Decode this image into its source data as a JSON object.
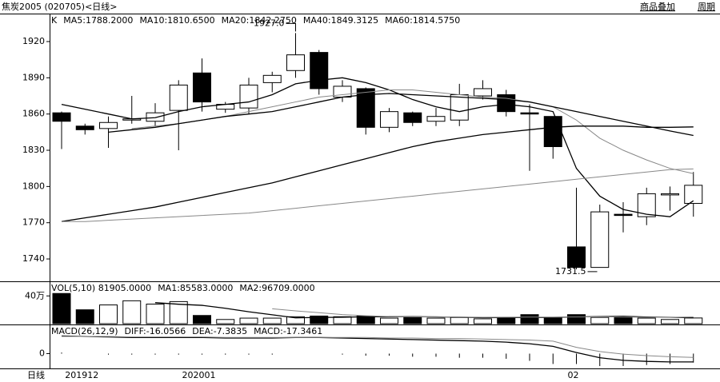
{
  "header": {
    "title": "焦炭2005 (020705)<日线>",
    "buttons": [
      "商品叠加",
      "周期"
    ]
  },
  "chart_data": [
    {
      "type": "candlestick",
      "legend_title": "K",
      "ylim": [
        1721.5,
        1942.5
      ],
      "yticks": [
        1740,
        1770,
        1800,
        1830,
        1860,
        1890,
        1920
      ],
      "grid": false,
      "up_color": "#ffffff",
      "down_color": "#000000",
      "open": [
        1861,
        1850,
        1848,
        1855,
        1854,
        1863,
        1894,
        1864,
        1865,
        1886,
        1896,
        1911,
        1874,
        1881,
        1849,
        1861,
        1854,
        1855,
        1875,
        1876,
        1861,
        1858,
        1750,
        1733,
        1777,
        1775,
        1793,
        1786
      ],
      "close": [
        1854,
        1847,
        1853,
        1856,
        1861,
        1884,
        1870,
        1868,
        1884,
        1892,
        1909,
        1881,
        1883,
        1849,
        1862,
        1853,
        1858,
        1876,
        1881,
        1862,
        1860,
        1833,
        1733,
        1779,
        1776,
        1794,
        1794,
        1801
      ],
      "high": [
        1862,
        1852,
        1858,
        1875,
        1869,
        1888,
        1906,
        1870,
        1890,
        1895,
        1927,
        1913,
        1888,
        1882,
        1865,
        1862,
        1865,
        1885,
        1888,
        1880,
        1868,
        1858,
        1799,
        1785,
        1787,
        1799,
        1800,
        1812
      ],
      "low": [
        1831,
        1843,
        1832,
        1852,
        1850,
        1830,
        1862,
        1861,
        1860,
        1878,
        1890,
        1876,
        1870,
        1843,
        1845,
        1850,
        1850,
        1850,
        1872,
        1858,
        1813,
        1823,
        1731.5,
        1733,
        1762,
        1768,
        1780,
        1775
      ],
      "annotations": [
        "1927.0",
        "1731.5"
      ],
      "series": [
        {
          "name": "MA5:1788.2000",
          "color": "#000000",
          "values": [
            1868,
            1864,
            1860,
            1856,
            1857,
            1862,
            1866,
            1868,
            1870,
            1876,
            1885,
            1888,
            1890,
            1886,
            1880,
            1872,
            1866,
            1862,
            1866,
            1868,
            1866,
            1862,
            1815,
            1792,
            1781,
            1777,
            1775,
            1788.2
          ]
        },
        {
          "name": "MA10:1810.6500",
          "color": "#888888",
          "values": [
            null,
            null,
            null,
            1848,
            1850,
            1852,
            1855,
            1858,
            1862,
            1866,
            1870,
            1874,
            1876,
            1878,
            1880,
            1880,
            1878,
            1876,
            1874,
            1873,
            1870,
            1866,
            1855,
            1840,
            1830,
            1822,
            1815,
            1810.65
          ]
        },
        {
          "name": "MA20:1842.2750",
          "color": "#000000",
          "values": [
            null,
            null,
            1845,
            1847,
            1849,
            1852,
            1855,
            1858,
            1860,
            1862,
            1866,
            1870,
            1874,
            1876,
            1877,
            1876,
            1875,
            1874,
            1873,
            1872,
            1870,
            1866,
            1862,
            1858,
            1854,
            1850,
            1846,
            1842.275
          ]
        },
        {
          "name": "MA40:1849.3125",
          "color": "#000000",
          "values": [
            1771,
            1774,
            1777,
            1780,
            1783,
            1787,
            1791,
            1795,
            1799,
            1803,
            1808,
            1813,
            1818,
            1823,
            1828,
            1833,
            1837,
            1840,
            1843,
            1845,
            1847,
            1849,
            1850,
            1850,
            1850,
            1849,
            1849,
            1849.3125
          ]
        },
        {
          "name": "MA60:1814.5750",
          "color": "#888888",
          "values": [
            1771,
            1771,
            1772,
            1773,
            1774,
            1775,
            1776,
            1777,
            1778,
            1780,
            1782,
            1784,
            1786,
            1788,
            1790,
            1792,
            1794,
            1796,
            1798,
            1800,
            1802,
            1804,
            1806,
            1808,
            1810,
            1812,
            1814,
            1814.575
          ]
        }
      ]
    },
    {
      "type": "volume",
      "title": "VOL(5,10) 81905.0000",
      "ylim": [
        0,
        576000
      ],
      "yticks": [
        {
          "value": 400000,
          "label": "40万"
        }
      ],
      "values": [
        435000,
        200000,
        270000,
        330000,
        282000,
        318000,
        118000,
        60000,
        80000,
        80000,
        100000,
        110000,
        100000,
        110000,
        80000,
        100000,
        80000,
        90000,
        70000,
        80000,
        130000,
        80000,
        130000,
        90000,
        100000,
        80000,
        60000,
        81905
      ],
      "series": [
        {
          "name": "MA1:85583.0000",
          "color": "#000000",
          "values": [
            null,
            null,
            null,
            null,
            303000,
            280000,
            264000,
            222000,
            171000,
            128000,
            84000,
            90000,
            92000,
            100000,
            100000,
            100000,
            98000,
            94000,
            86000,
            88000,
            90000,
            90000,
            98000,
            102000,
            106000,
            96000,
            92000,
            85583
          ]
        },
        {
          "name": "MA2:96709.0000",
          "color": "#888888",
          "values": [
            null,
            null,
            null,
            null,
            null,
            null,
            null,
            null,
            null,
            215000,
            184000,
            159000,
            131000,
            114000,
            102000,
            98000,
            99000,
            97000,
            92000,
            94000,
            95000,
            95000,
            96000,
            98000,
            97000,
            92000,
            92000,
            96709
          ]
        }
      ]
    },
    {
      "type": "macd",
      "title": "MACD(26,12,9)",
      "ylim": [
        -27,
        53
      ],
      "yticks": [
        0
      ],
      "xlabel": "日线",
      "categories": [
        null,
        "201912",
        null,
        null,
        null,
        null,
        "202001",
        null,
        null,
        null,
        null,
        null,
        null,
        null,
        null,
        null,
        null,
        null,
        null,
        null,
        null,
        null,
        "02",
        null,
        null,
        null,
        null,
        null
      ],
      "series": [
        {
          "name": "DIFF:-16.0566",
          "color": "#000000",
          "values": [
            34,
            33,
            32,
            31,
            31,
            31,
            31,
            30,
            30,
            30,
            31,
            31,
            30,
            29,
            28,
            27,
            26,
            25,
            24,
            22,
            19,
            14,
            2,
            -8,
            -13,
            -15,
            -16,
            -16.0566
          ]
        },
        {
          "name": "DEA:-7.3835",
          "color": "#888888",
          "values": [
            33,
            33,
            33,
            32,
            32,
            32,
            32,
            31,
            31,
            31,
            31,
            31,
            31,
            31,
            30,
            30,
            29,
            29,
            28,
            27,
            26,
            24,
            12,
            4,
            -1,
            -4,
            -6,
            -7.3835
          ]
        }
      ],
      "bars": {
        "name": "MACD:-17.3461",
        "color": "#000000",
        "values": [
          2,
          0,
          -2,
          -2,
          -2,
          -2,
          -2,
          -2,
          -2,
          -2,
          0,
          0,
          -2,
          -4,
          -4,
          -6,
          -6,
          -8,
          -8,
          -10,
          -14,
          -20,
          -20,
          -24,
          -24,
          -22,
          -20,
          -17.3461
        ]
      }
    }
  ]
}
